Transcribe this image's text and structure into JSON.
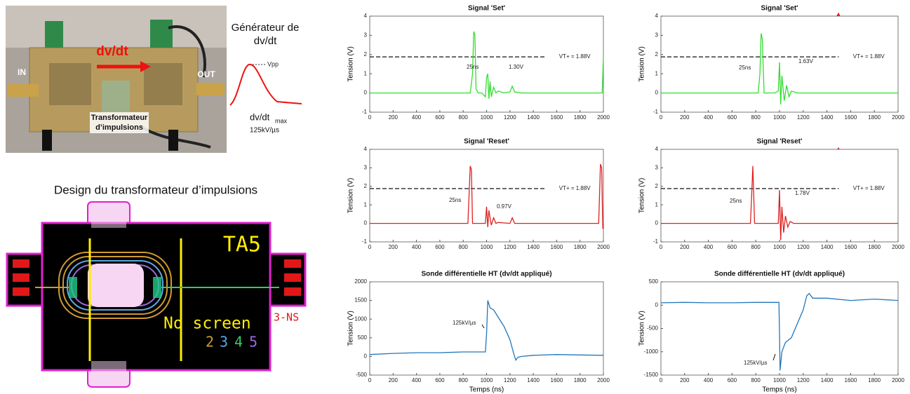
{
  "photo": {
    "arrow_label": "dv/dt",
    "in_label": "IN",
    "out_label": "OUT",
    "transformer_label": [
      "Transformateur",
      "d’impulsions"
    ]
  },
  "generator": {
    "title": [
      "Générateur de",
      "dv/dt"
    ],
    "vpp": "Vpp",
    "slope": "dv/dt",
    "slope_sub": "max",
    "slope_value": "125kV/µs"
  },
  "layout": {
    "title": "Design du transformateur d’impulsions",
    "name": "TA5",
    "screen": "No screen",
    "code": "3-NS",
    "layers": [
      "2",
      "3",
      "4",
      "5"
    ]
  },
  "chart_data": [
    {
      "type": "line",
      "title": "Signal 'Set'",
      "ylabel": "Tension (V)",
      "xlim": [
        0,
        2000
      ],
      "ylim": [
        -1,
        4
      ],
      "xticks": [
        0,
        200,
        400,
        600,
        800,
        1000,
        1200,
        1400,
        1600,
        1800,
        2000
      ],
      "yticks": [
        -1,
        0,
        1,
        2,
        3,
        4
      ],
      "threshold": {
        "value": 1.88,
        "label": "VT+ = 1.88V"
      },
      "annotations": [
        "25ns",
        "1.30V"
      ],
      "series": [
        {
          "color": "#33dd33",
          "x": [
            0,
            100,
            200,
            300,
            400,
            500,
            600,
            700,
            800,
            860,
            880,
            890,
            900,
            910,
            930,
            960,
            990,
            1000,
            1010,
            1020,
            1030,
            1040,
            1060,
            1080,
            1100,
            1150,
            1200,
            1220,
            1240,
            1300,
            1400,
            1600,
            1800,
            1990,
            2000
          ],
          "values": [
            0,
            0,
            0,
            0,
            0,
            0,
            0,
            0,
            0,
            0,
            1.0,
            3.2,
            3.0,
            0.2,
            0,
            0,
            -0.2,
            0.8,
            1.0,
            -0.3,
            0.6,
            -0.2,
            0.3,
            0,
            0.1,
            0,
            0.05,
            0.35,
            0.05,
            0,
            0,
            0,
            0,
            0,
            1.9
          ]
        }
      ]
    },
    {
      "type": "line",
      "title": "Signal 'Set'",
      "ylabel": "Tension (V)",
      "xlim": [
        0,
        2000
      ],
      "ylim": [
        -1,
        4
      ],
      "xticks": [
        0,
        200,
        400,
        600,
        800,
        1000,
        1200,
        1400,
        1600,
        1800,
        2000
      ],
      "yticks": [
        -1,
        0,
        1,
        2,
        3,
        4
      ],
      "threshold": {
        "value": 1.88,
        "label": "VT+ = 1.88V"
      },
      "annotations": [
        "25ns",
        "1.63V"
      ],
      "series": [
        {
          "color": "#33dd33",
          "x": [
            0,
            200,
            400,
            600,
            800,
            820,
            835,
            845,
            855,
            870,
            900,
            960,
            990,
            1000,
            1010,
            1020,
            1040,
            1060,
            1080,
            1100,
            1150,
            1200,
            1400,
            1600,
            1800,
            2000
          ],
          "values": [
            0,
            0,
            0,
            0,
            0,
            0,
            1.0,
            3.1,
            2.8,
            0,
            0,
            0,
            0.1,
            1.6,
            -0.6,
            0.9,
            -0.4,
            0.4,
            -0.2,
            0.1,
            0,
            0,
            0,
            0,
            0,
            0
          ]
        }
      ]
    },
    {
      "type": "line",
      "title": "Signal 'Reset'",
      "ylabel": "Tension (V)",
      "xlim": [
        0,
        2000
      ],
      "ylim": [
        -1,
        4
      ],
      "xticks": [
        0,
        200,
        400,
        600,
        800,
        1000,
        1200,
        1400,
        1600,
        1800,
        2000
      ],
      "yticks": [
        -1,
        0,
        1,
        2,
        3,
        4
      ],
      "threshold": {
        "value": 1.88,
        "label": "VT+ = 1.88V"
      },
      "annotations": [
        "25ns",
        "0.97V"
      ],
      "series": [
        {
          "color": "#dd2222",
          "x": [
            0,
            200,
            400,
            600,
            800,
            840,
            850,
            860,
            870,
            880,
            900,
            960,
            990,
            1000,
            1010,
            1020,
            1040,
            1060,
            1080,
            1100,
            1200,
            1220,
            1240,
            1400,
            1600,
            1800,
            1960,
            1975,
            1985,
            1995,
            2000
          ],
          "values": [
            0,
            0,
            0,
            0,
            0,
            0,
            1.5,
            3.1,
            2.9,
            0,
            0,
            0,
            0,
            0.9,
            -0.2,
            0.7,
            -0.1,
            0.3,
            0,
            0.05,
            0,
            0.3,
            0,
            0,
            0,
            0,
            0,
            3.2,
            3.0,
            -0.3,
            0
          ]
        }
      ]
    },
    {
      "type": "line",
      "title": "Signal 'Reset'",
      "ylabel": "Tension (V)",
      "xlim": [
        0,
        2000
      ],
      "ylim": [
        -1,
        4
      ],
      "xticks": [
        0,
        200,
        400,
        600,
        800,
        1000,
        1200,
        1400,
        1600,
        1800,
        2000
      ],
      "yticks": [
        -1,
        0,
        1,
        2,
        3,
        4
      ],
      "threshold": {
        "value": 1.88,
        "label": "VT+ = 1.88V"
      },
      "annotations": [
        "25ns",
        "1.78V"
      ],
      "series": [
        {
          "color": "#dd2222",
          "x": [
            0,
            200,
            400,
            600,
            740,
            755,
            765,
            775,
            790,
            820,
            900,
            990,
            1000,
            1010,
            1020,
            1035,
            1050,
            1070,
            1090,
            1120,
            1200,
            1400,
            1600,
            1800,
            2000
          ],
          "values": [
            0,
            0,
            0,
            0,
            0,
            0,
            1.5,
            3.1,
            0,
            0,
            0,
            0,
            1.8,
            -0.9,
            0.9,
            -0.5,
            0.4,
            -0.2,
            0.1,
            0,
            0,
            0,
            0,
            0,
            0
          ]
        }
      ]
    },
    {
      "type": "line",
      "title": "Sonde différentielle HT (dv/dt appliqué)",
      "ylabel": "Tension (V)",
      "xlabel": "Temps (ns)",
      "xlim": [
        0,
        2000
      ],
      "ylim": [
        -500,
        2000
      ],
      "xticks": [
        0,
        200,
        400,
        600,
        800,
        1000,
        1200,
        1400,
        1600,
        1800,
        2000
      ],
      "yticks": [
        -500,
        0,
        500,
        1000,
        1500,
        2000
      ],
      "annotations": [
        "125kV/µs"
      ],
      "series": [
        {
          "color": "#2277bb",
          "x": [
            0,
            200,
            400,
            600,
            800,
            990,
            1000,
            1010,
            1030,
            1060,
            1100,
            1150,
            1200,
            1230,
            1250,
            1270,
            1300,
            1400,
            1600,
            1800,
            2000
          ],
          "values": [
            50,
            80,
            100,
            100,
            120,
            120,
            600,
            1500,
            1300,
            1250,
            1050,
            800,
            450,
            100,
            -100,
            -20,
            0,
            30,
            50,
            40,
            30
          ]
        }
      ]
    },
    {
      "type": "line",
      "title": "Sonde différentielle HT (dv/dt appliqué)",
      "ylabel": "Tension (V)",
      "xlabel": "Temps (ns)",
      "xlim": [
        0,
        2000
      ],
      "ylim": [
        -1500,
        500
      ],
      "xticks": [
        0,
        200,
        400,
        600,
        800,
        1000,
        1200,
        1400,
        1600,
        1800,
        2000
      ],
      "yticks": [
        -1500,
        -1000,
        -500,
        0,
        500
      ],
      "annotations": [
        "125kV/µs"
      ],
      "series": [
        {
          "color": "#2277bb",
          "x": [
            0,
            200,
            400,
            600,
            800,
            995,
            1000,
            1005,
            1020,
            1050,
            1100,
            1150,
            1200,
            1230,
            1250,
            1280,
            1400,
            1600,
            1800,
            2000
          ],
          "values": [
            50,
            60,
            50,
            50,
            60,
            60,
            -600,
            -1400,
            -1000,
            -800,
            -700,
            -400,
            -100,
            200,
            250,
            150,
            150,
            100,
            130,
            100
          ]
        }
      ]
    }
  ]
}
